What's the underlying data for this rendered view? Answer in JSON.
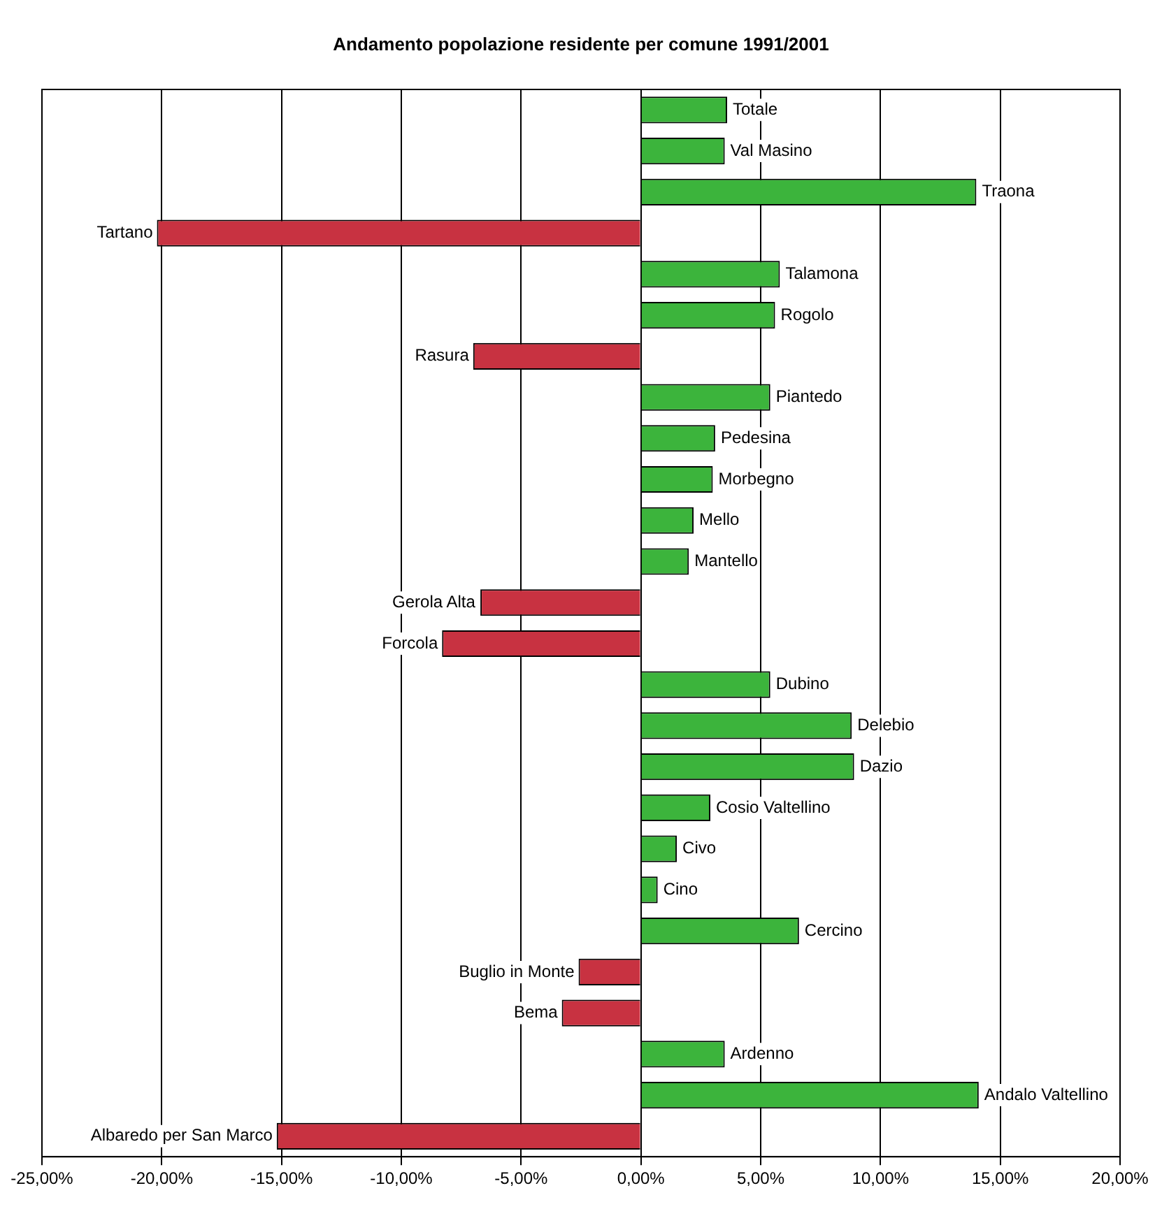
{
  "chart_data": {
    "type": "bar",
    "orientation": "horizontal",
    "title": "Andamento popolazione residente per comune 1991/2001",
    "categories": [
      "Totale",
      "Val Masino",
      "Traona",
      "Tartano",
      "Talamona",
      "Rogolo",
      "Rasura",
      "Piantedo",
      "Pedesina",
      "Morbegno",
      "Mello",
      "Mantello",
      "Gerola Alta",
      "Forcola",
      "Dubino",
      "Delebio",
      "Dazio",
      "Cosio Valtellino",
      "Civo",
      "Cino",
      "Cercino",
      "Buglio in Monte",
      "Bema",
      "Ardenno",
      "Andalo Valtellino",
      "Albaredo per San Marco"
    ],
    "values": [
      3.6,
      3.5,
      14.0,
      -20.2,
      5.8,
      5.6,
      -7.0,
      5.4,
      3.1,
      3.0,
      2.2,
      2.0,
      -6.7,
      -8.3,
      5.4,
      8.8,
      8.9,
      2.9,
      1.5,
      0.7,
      6.6,
      -2.6,
      -3.3,
      3.5,
      14.1,
      -15.2
    ],
    "colors": [
      "#3cb43c",
      "#3cb43c",
      "#3cb43c",
      "#c83241",
      "#3cb43c",
      "#3cb43c",
      "#c83241",
      "#3cb43c",
      "#3cb43c",
      "#3cb43c",
      "#3cb43c",
      "#3cb43c",
      "#c83241",
      "#c83241",
      "#3cb43c",
      "#3cb43c",
      "#3cb43c",
      "#3cb43c",
      "#3cb43c",
      "#3cb43c",
      "#3cb43c",
      "#c83241",
      "#c83241",
      "#3cb43c",
      "#3cb43c",
      "#c83241"
    ],
    "xlim": [
      -25,
      20
    ],
    "xticks": [
      {
        "value": -25,
        "label": "-25,00%"
      },
      {
        "value": -20,
        "label": "-20,00%"
      },
      {
        "value": -15,
        "label": "-15,00%"
      },
      {
        "value": -10,
        "label": "-10,00%"
      },
      {
        "value": -5,
        "label": "-5,00%"
      },
      {
        "value": 0,
        "label": "0,00%"
      },
      {
        "value": 5,
        "label": "5,00%"
      },
      {
        "value": 10,
        "label": "10,00%"
      },
      {
        "value": 15,
        "label": "15,00%"
      },
      {
        "value": 20,
        "label": "20,00%"
      }
    ],
    "grid": "x",
    "tick_labels": "x",
    "legend": false
  }
}
